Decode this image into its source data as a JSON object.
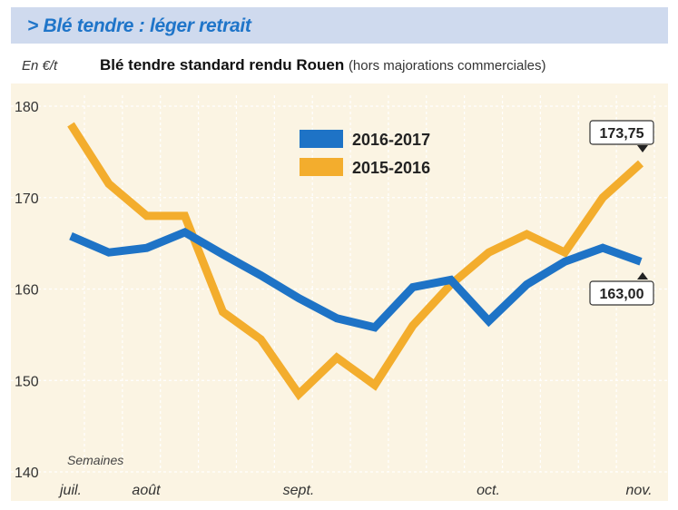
{
  "header": {
    "title": "> Blé tendre : léger retrait",
    "unit": "En €/t",
    "chart_title": "Blé tendre standard rendu Rouen",
    "chart_subtitle": "(hors majorations commerciales)"
  },
  "colors": {
    "banner_bg": "#cfdaee",
    "title": "#1f75c9",
    "plot_bg": "#fbf4e3",
    "series_2016_2017": "#1e73c6",
    "series_2015_2016": "#f3ad2d"
  },
  "chart_data": {
    "type": "line",
    "title": "Blé tendre standard rendu Rouen",
    "subtitle": "(hors majorations commerciales)",
    "ylabel": "En €/t",
    "xlabel": "Semaines",
    "ylim": [
      140,
      180
    ],
    "yticks": [
      140,
      150,
      160,
      170,
      180
    ],
    "x_month_labels": [
      "juil.",
      "août",
      "sept.",
      "oct.",
      "nov."
    ],
    "grid": true,
    "legend_position": "top-center",
    "series": [
      {
        "name": "2016-2017",
        "values": [
          165.8,
          164.0,
          164.5,
          166.2,
          163.8,
          161.5,
          159.0,
          156.8,
          155.8,
          160.2,
          161.0,
          156.5,
          160.5,
          163.0,
          164.5,
          163.0
        ]
      },
      {
        "name": "2015-2016",
        "values": [
          178.0,
          171.5,
          168.0,
          168.0,
          157.5,
          154.5,
          148.5,
          152.5,
          149.5,
          156.0,
          160.5,
          164.0,
          166.0,
          164.0,
          170.0,
          173.75
        ]
      }
    ],
    "annotations": [
      {
        "series": "2015-2016",
        "text": "173,75"
      },
      {
        "series": "2016-2017",
        "text": "163,00"
      }
    ]
  }
}
